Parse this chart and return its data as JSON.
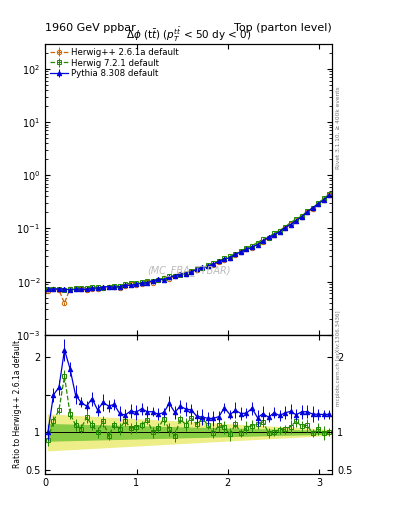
{
  "title_left": "1960 GeV ppbar",
  "title_right": "Top (parton level)",
  "plot_title": "Δφ (ttbar) (pTtt < 50 dy < 0)",
  "watermark": "(MC_FBA_TTBAR)",
  "right_label_top": "Rivet 3.1.10, ≥ 400k events",
  "right_label_bot": "mcplots.cern.ch [arXiv:1306.3436]",
  "ylabel_ratio": "Ratio to Herwig++ 2.6.1a default",
  "xlim": [
    0,
    3.14159
  ],
  "ylim_main_log": [
    -3,
    2.5
  ],
  "ylim_ratio": [
    0.45,
    2.3
  ],
  "col_hpp": "#cc6600",
  "col_hw7": "#228800",
  "col_py8": "#0000dd",
  "col_band_outer": "#eeee88",
  "col_band_inner": "#88cc44",
  "legend_labels": [
    "Herwig++ 2.6.1a default",
    "Herwig 7.2.1 default",
    "Pythia 8.308 default"
  ]
}
